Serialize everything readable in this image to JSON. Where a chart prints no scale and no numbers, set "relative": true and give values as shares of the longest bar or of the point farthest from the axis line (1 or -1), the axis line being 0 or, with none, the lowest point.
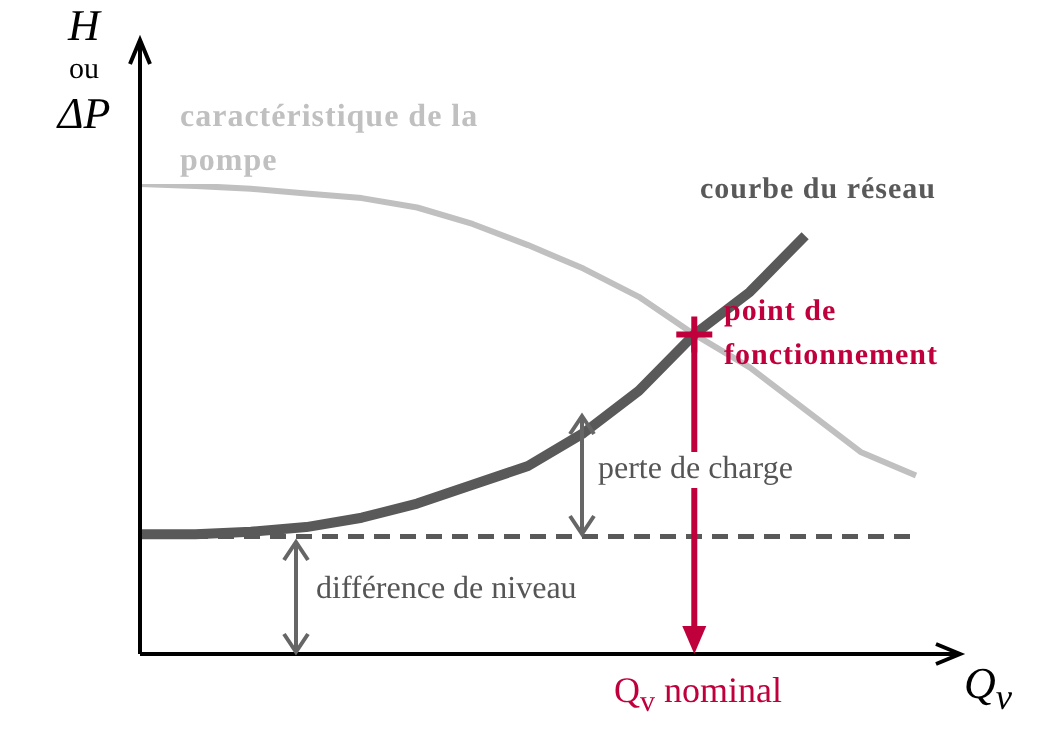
{
  "chart_data": {
    "type": "line",
    "relative": true,
    "xlabel": "Q$_{v}$",
    "ylabel": "H ou ΔP",
    "categories": [
      null,
      null,
      null,
      null,
      null,
      null,
      null,
      null,
      null,
      null,
      null,
      null,
      null,
      null,
      null
    ],
    "series": [
      {
        "name": "caractéristique de la pompe",
        "color": "#c0c0c0",
        "values": [
          1.0,
          0.996,
          0.99,
          0.98,
          0.97,
          0.95,
          0.915,
          0.87,
          0.82,
          0.76,
          0.68,
          0.61,
          0.52,
          0.43,
          0.38
        ]
      },
      {
        "name": "courbe du réseau",
        "color": "#595959",
        "values": [
          0.255,
          0.255,
          0.26,
          0.27,
          0.29,
          0.32,
          0.36,
          0.4,
          0.47,
          0.56,
          0.68,
          0.77,
          0.89,
          null,
          null
        ]
      }
    ],
    "ref_lines": [
      {
        "axis": "y",
        "value": 0.25,
        "color": "#595959",
        "line_style": "dashed"
      }
    ],
    "annotations": [
      "point de fonctionnement",
      "perte de charge",
      "différence de niveau",
      "Q$_{v}$ nominal"
    ]
  }
}
